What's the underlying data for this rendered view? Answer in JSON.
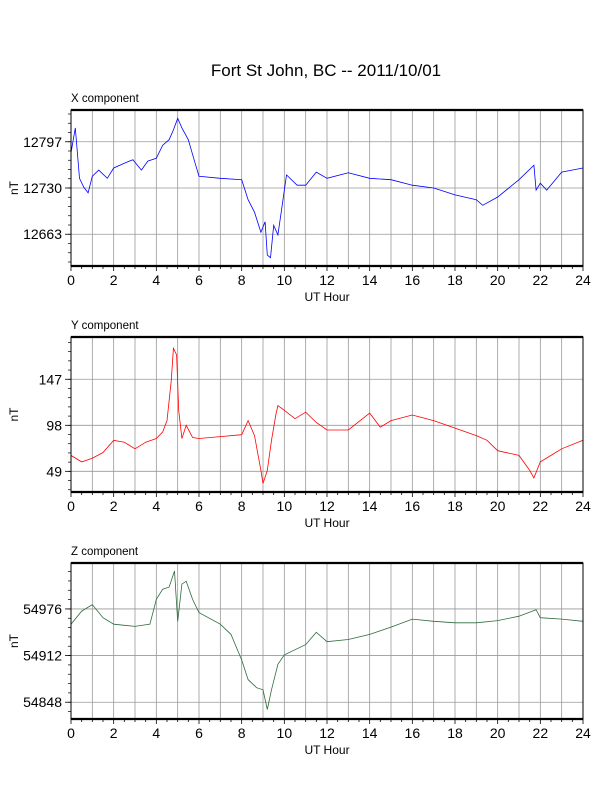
{
  "chart_data": [
    {
      "type": "line",
      "title": "Fort St John, BC -- 2011/10/01",
      "panel_label": "X component",
      "xlabel": "UT Hour",
      "ylabel": "nT",
      "xlim": [
        0,
        24
      ],
      "ylim": [
        12617,
        12843
      ],
      "xticks": [
        0,
        2,
        4,
        6,
        8,
        10,
        12,
        14,
        16,
        18,
        20,
        22,
        24
      ],
      "yticks": [
        12663,
        12730,
        12797
      ],
      "grid": true,
      "color": "#0000ff",
      "x": [
        0,
        0.2,
        0.4,
        0.6,
        0.8,
        1.0,
        1.3,
        1.7,
        2.0,
        2.5,
        2.9,
        3.3,
        3.6,
        4.0,
        4.3,
        4.6,
        4.8,
        5.0,
        5.2,
        5.5,
        5.8,
        6.0,
        7.0,
        8.0,
        8.3,
        8.6,
        8.9,
        9.1,
        9.2,
        9.35,
        9.5,
        9.7,
        9.9,
        10.1,
        10.6,
        11.0,
        11.5,
        12,
        13,
        14,
        15,
        16,
        17,
        18,
        19,
        19.3,
        20,
        21,
        21.7,
        21.8,
        22,
        22.3,
        23,
        24
      ],
      "y": [
        12781,
        12817,
        12744,
        12731,
        12723,
        12747,
        12756,
        12744,
        12759,
        12766,
        12771,
        12756,
        12769,
        12773,
        12792,
        12800,
        12814,
        12831,
        12817,
        12800,
        12768,
        12747,
        12744,
        12742,
        12713,
        12695,
        12666,
        12681,
        12633,
        12629,
        12676,
        12662,
        12705,
        12749,
        12734,
        12734,
        12753,
        12744,
        12752,
        12744,
        12742,
        12734,
        12730,
        12720,
        12713,
        12705,
        12717,
        12742,
        12763,
        12727,
        12737,
        12727,
        12753,
        12759
      ]
    },
    {
      "type": "line",
      "panel_label": "Y component",
      "xlabel": "UT Hour",
      "ylabel": "nT",
      "xlim": [
        0,
        24
      ],
      "ylim": [
        27,
        192
      ],
      "xticks": [
        0,
        2,
        4,
        6,
        8,
        10,
        12,
        14,
        16,
        18,
        20,
        22,
        24
      ],
      "yticks": [
        49,
        98,
        147
      ],
      "grid": true,
      "color": "#ff0000",
      "x": [
        0,
        0.5,
        1,
        1.5,
        2,
        2.5,
        3,
        3.5,
        4,
        4.3,
        4.5,
        4.7,
        4.8,
        4.95,
        5.05,
        5.2,
        5.4,
        5.7,
        6,
        7,
        8,
        8.3,
        8.6,
        8.9,
        9.0,
        9.2,
        9.4,
        9.6,
        9.7,
        10,
        10.5,
        11,
        11.5,
        12,
        13,
        14,
        14.5,
        15,
        16,
        17,
        18,
        19,
        19.5,
        20,
        21,
        21.5,
        21.7,
        22,
        22.5,
        23,
        24
      ],
      "y": [
        66,
        59,
        63,
        69,
        82,
        80,
        73,
        80,
        84,
        91,
        103,
        146,
        180,
        173,
        114,
        84,
        98,
        85,
        84,
        86,
        88,
        103,
        87,
        50,
        36,
        50,
        82,
        109,
        119,
        114,
        105,
        112,
        101,
        93,
        93,
        111,
        96,
        103,
        109,
        103,
        95,
        87,
        82,
        71,
        66,
        50,
        42,
        59,
        66,
        73,
        82
      ]
    },
    {
      "type": "line",
      "panel_label": "Z component",
      "xlabel": "UT Hour",
      "ylabel": "nT",
      "xlim": [
        0,
        24
      ],
      "ylim": [
        54825,
        55039
      ],
      "xticks": [
        0,
        2,
        4,
        6,
        8,
        10,
        12,
        14,
        16,
        18,
        20,
        22,
        24
      ],
      "yticks": [
        54848,
        54912,
        54976
      ],
      "grid": true,
      "color": "#2e6b3e",
      "x": [
        0,
        0.5,
        1,
        1.5,
        2,
        3,
        3.7,
        4.0,
        4.3,
        4.6,
        4.85,
        5.0,
        5.2,
        5.4,
        5.7,
        6,
        7,
        7.5,
        8,
        8.3,
        8.7,
        9.0,
        9.2,
        9.4,
        9.7,
        10,
        11,
        11.5,
        12,
        13,
        14,
        15,
        16,
        17,
        18,
        19,
        20,
        21,
        21.8,
        22,
        23,
        24
      ],
      "y": [
        54955,
        54973,
        54982,
        54964,
        54955,
        54952,
        54955,
        54989,
        55003,
        55006,
        55028,
        54959,
        55010,
        55014,
        54989,
        54971,
        54955,
        54941,
        54906,
        54879,
        54868,
        54865,
        54838,
        54865,
        54900,
        54913,
        54927,
        54944,
        54931,
        54934,
        54941,
        54951,
        54962,
        54959,
        54957,
        54957,
        54960,
        54966,
        54975,
        54964,
        54962,
        54959
      ]
    }
  ]
}
